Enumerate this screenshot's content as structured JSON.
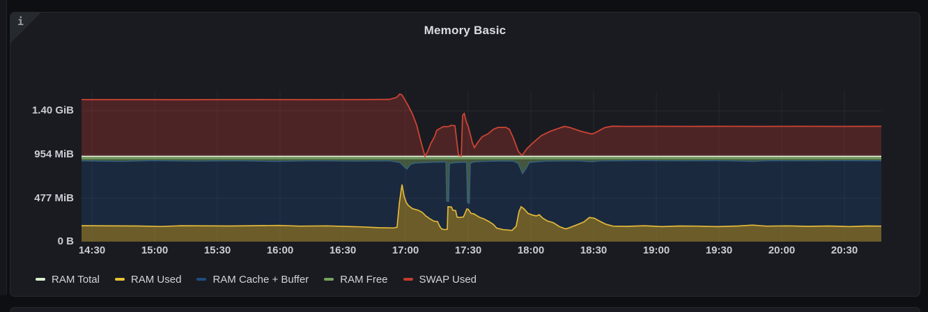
{
  "panel": {
    "title": "Memory Basic",
    "info_icon_glyph": "i"
  },
  "y_axis": {
    "unit": "bytes(IEC)",
    "max_mib": 1656,
    "ticks": [
      {
        "label": "1.40 GiB",
        "value_mib": 1433.6
      },
      {
        "label": "954 MiB",
        "value_mib": 954
      },
      {
        "label": "477 MiB",
        "value_mib": 477
      },
      {
        "label": "0 B",
        "value_mib": 0
      }
    ]
  },
  "x_axis": {
    "ticks": [
      "14:30",
      "15:00",
      "15:30",
      "16:00",
      "16:30",
      "17:00",
      "17:30",
      "18:00",
      "18:30",
      "19:00",
      "19:30",
      "20:00",
      "20:30"
    ],
    "visible_start": "14:25",
    "visible_end": "20:48"
  },
  "legend": {
    "items": [
      {
        "label": "RAM Total",
        "color": "#dcefd0"
      },
      {
        "label": "RAM Used",
        "color": "#e8c433"
      },
      {
        "label": "RAM Cache + Buffer",
        "color": "#1d4d80"
      },
      {
        "label": "RAM Free",
        "color": "#77a25f"
      },
      {
        "label": "SWAP Used",
        "color": "#c23d2e"
      }
    ]
  },
  "chart_data": {
    "type": "area",
    "stacked": true,
    "unit": "MiB",
    "grid": true,
    "legend_position": "bottom",
    "title": "Memory Basic",
    "x_range": [
      "14:25",
      "20:48"
    ],
    "y_range_mib": [
      0,
      1656
    ],
    "ram_total_mib": 930,
    "note": "points are [fraction_of_x_range, MiB]; RAM Used / Cache+Buffer / Free stack to RAM Total; SWAP Used stacks above RAM Total",
    "series": [
      {
        "name": "RAM Total",
        "color": "#dcefd0",
        "render": "line",
        "constant_mib": 930
      },
      {
        "name": "RAM Used",
        "color": "#e2b93b",
        "fill": "rgba(230,189,58,0.40)",
        "points": [
          [
            0,
            175
          ],
          [
            0.07,
            172
          ],
          [
            0.1,
            166
          ],
          [
            0.125,
            175
          ],
          [
            0.186,
            172
          ],
          [
            0.247,
            178
          ],
          [
            0.273,
            170
          ],
          [
            0.307,
            173
          ],
          [
            0.351,
            162
          ],
          [
            0.373,
            153
          ],
          [
            0.39,
            150
          ],
          [
            0.3945,
            158
          ],
          [
            0.3975,
            430
          ],
          [
            0.4007,
            626
          ],
          [
            0.4033,
            500
          ],
          [
            0.406,
            430
          ],
          [
            0.4086,
            397
          ],
          [
            0.4138,
            362
          ],
          [
            0.4207,
            345
          ],
          [
            0.4259,
            322
          ],
          [
            0.4285,
            300
          ],
          [
            0.4303,
            282
          ],
          [
            0.4329,
            268
          ],
          [
            0.4364,
            246
          ],
          [
            0.4407,
            224
          ],
          [
            0.4451,
            220
          ],
          [
            0.4477,
            170
          ],
          [
            0.4503,
            138
          ],
          [
            0.4547,
            132
          ],
          [
            0.4573,
            135
          ],
          [
            0.4582,
            382
          ],
          [
            0.4625,
            380
          ],
          [
            0.4643,
            345
          ],
          [
            0.4678,
            340
          ],
          [
            0.4695,
            270
          ],
          [
            0.473,
            265
          ],
          [
            0.4756,
            268
          ],
          [
            0.4774,
            272
          ],
          [
            0.4791,
            300
          ],
          [
            0.4817,
            358
          ],
          [
            0.4835,
            355
          ],
          [
            0.4869,
            310
          ],
          [
            0.4904,
            305
          ],
          [
            0.4974,
            268
          ],
          [
            0.5035,
            248
          ],
          [
            0.5096,
            220
          ],
          [
            0.5148,
            190
          ],
          [
            0.5192,
            148
          ],
          [
            0.527,
            132
          ],
          [
            0.5383,
            124
          ],
          [
            0.5435,
            170
          ],
          [
            0.547,
            330
          ],
          [
            0.5496,
            382
          ],
          [
            0.5531,
            360
          ],
          [
            0.5583,
            310
          ],
          [
            0.5644,
            290
          ],
          [
            0.5688,
            282
          ],
          [
            0.5723,
            295
          ],
          [
            0.5766,
            258
          ],
          [
            0.5827,
            226
          ],
          [
            0.5897,
            208
          ],
          [
            0.5975,
            165
          ],
          [
            0.6054,
            140
          ],
          [
            0.6106,
            155
          ],
          [
            0.6193,
            185
          ],
          [
            0.628,
            215
          ],
          [
            0.635,
            265
          ],
          [
            0.6411,
            257
          ],
          [
            0.6489,
            220
          ],
          [
            0.6559,
            190
          ],
          [
            0.6646,
            170
          ],
          [
            0.682,
            168
          ],
          [
            0.7038,
            175
          ],
          [
            0.7256,
            165
          ],
          [
            0.7474,
            172
          ],
          [
            0.7692,
            170
          ],
          [
            0.7953,
            165
          ],
          [
            0.8214,
            172
          ],
          [
            0.8389,
            182
          ],
          [
            0.8563,
            170
          ],
          [
            0.8824,
            173
          ],
          [
            0.9086,
            168
          ],
          [
            0.9347,
            172
          ],
          [
            0.9608,
            165
          ],
          [
            0.9826,
            172
          ],
          [
            1,
            170
          ]
        ]
      },
      {
        "name": "RAM Cache + Buffer",
        "color": "#33688e",
        "fill": "rgba(29,77,128,0.30)",
        "stack_top_points": [
          [
            0,
            885
          ],
          [
            0.05,
            880
          ],
          [
            0.09,
            888
          ],
          [
            0.14,
            882
          ],
          [
            0.19,
            887
          ],
          [
            0.24,
            880
          ],
          [
            0.29,
            886
          ],
          [
            0.34,
            882
          ],
          [
            0.385,
            885
          ],
          [
            0.398,
            868
          ],
          [
            0.4033,
            822
          ],
          [
            0.407,
            795
          ],
          [
            0.4112,
            845
          ],
          [
            0.4155,
            858
          ],
          [
            0.42,
            862
          ],
          [
            0.43,
            866
          ],
          [
            0.44,
            870
          ],
          [
            0.4512,
            872
          ],
          [
            0.4556,
            874
          ],
          [
            0.4565,
            445
          ],
          [
            0.4591,
            440
          ],
          [
            0.46,
            855
          ],
          [
            0.4652,
            865
          ],
          [
            0.4704,
            868
          ],
          [
            0.4791,
            870
          ],
          [
            0.4814,
            868
          ],
          [
            0.4826,
            430
          ],
          [
            0.4849,
            418
          ],
          [
            0.4861,
            858
          ],
          [
            0.49,
            872
          ],
          [
            0.5,
            878
          ],
          [
            0.52,
            884
          ],
          [
            0.54,
            882
          ],
          [
            0.546,
            858
          ],
          [
            0.5514,
            745
          ],
          [
            0.5557,
            798
          ],
          [
            0.5601,
            868
          ],
          [
            0.58,
            882
          ],
          [
            0.62,
            885
          ],
          [
            0.638,
            876
          ],
          [
            0.65,
            885
          ],
          [
            0.7,
            888
          ],
          [
            0.75,
            886
          ],
          [
            0.8,
            888
          ],
          [
            0.84,
            880
          ],
          [
            0.86,
            888
          ],
          [
            0.9,
            886
          ],
          [
            0.95,
            888
          ],
          [
            1,
            887
          ]
        ]
      },
      {
        "name": "RAM Free",
        "color": "#77a25f",
        "fill": "rgba(119,162,95,0.45)",
        "derived": "ram_total minus cache stack top"
      },
      {
        "name": "SWAP Used",
        "color": "#cb4433",
        "fill": "rgba(196,61,46,0.30)",
        "stacked_on_mib": 930,
        "points": [
          [
            0,
            627
          ],
          [
            0.05,
            627
          ],
          [
            0.12,
            625
          ],
          [
            0.2,
            627
          ],
          [
            0.28,
            626
          ],
          [
            0.35,
            627
          ],
          [
            0.385,
            629
          ],
          [
            0.3937,
            650
          ],
          [
            0.398,
            688
          ],
          [
            0.4007,
            678
          ],
          [
            0.4085,
            560
          ],
          [
            0.4138,
            468
          ],
          [
            0.419,
            350
          ],
          [
            0.4242,
            170
          ],
          [
            0.4294,
            6
          ],
          [
            0.4328,
            60
          ],
          [
            0.4364,
            140
          ],
          [
            0.4416,
            225
          ],
          [
            0.4442,
            290
          ],
          [
            0.4495,
            318
          ],
          [
            0.453,
            332
          ],
          [
            0.4582,
            330
          ],
          [
            0.4625,
            345
          ],
          [
            0.4669,
            340
          ],
          [
            0.4695,
            150
          ],
          [
            0.4713,
            15
          ],
          [
            0.4748,
            10
          ],
          [
            0.4765,
            455
          ],
          [
            0.4786,
            474
          ],
          [
            0.4808,
            390
          ],
          [
            0.4835,
            330
          ],
          [
            0.4861,
            245
          ],
          [
            0.4887,
            155
          ],
          [
            0.4913,
            100
          ],
          [
            0.4948,
            150
          ],
          [
            0.5009,
            220
          ],
          [
            0.5079,
            250
          ],
          [
            0.5148,
            300
          ],
          [
            0.5209,
            322
          ],
          [
            0.5305,
            322
          ],
          [
            0.535,
            300
          ],
          [
            0.54,
            205
          ],
          [
            0.5461,
            60
          ],
          [
            0.5496,
            25
          ],
          [
            0.5514,
            22
          ],
          [
            0.557,
            90
          ],
          [
            0.5653,
            160
          ],
          [
            0.5749,
            232
          ],
          [
            0.5862,
            280
          ],
          [
            0.6001,
            322
          ],
          [
            0.6036,
            332
          ],
          [
            0.61,
            322
          ],
          [
            0.6237,
            282
          ],
          [
            0.631,
            265
          ],
          [
            0.638,
            250
          ],
          [
            0.642,
            262
          ],
          [
            0.6542,
            320
          ],
          [
            0.6637,
            335
          ],
          [
            0.68,
            333
          ],
          [
            0.72,
            334
          ],
          [
            0.76,
            333
          ],
          [
            0.8,
            334
          ],
          [
            0.85,
            333
          ],
          [
            0.9,
            334
          ],
          [
            0.95,
            333
          ],
          [
            1,
            334
          ]
        ]
      }
    ]
  }
}
